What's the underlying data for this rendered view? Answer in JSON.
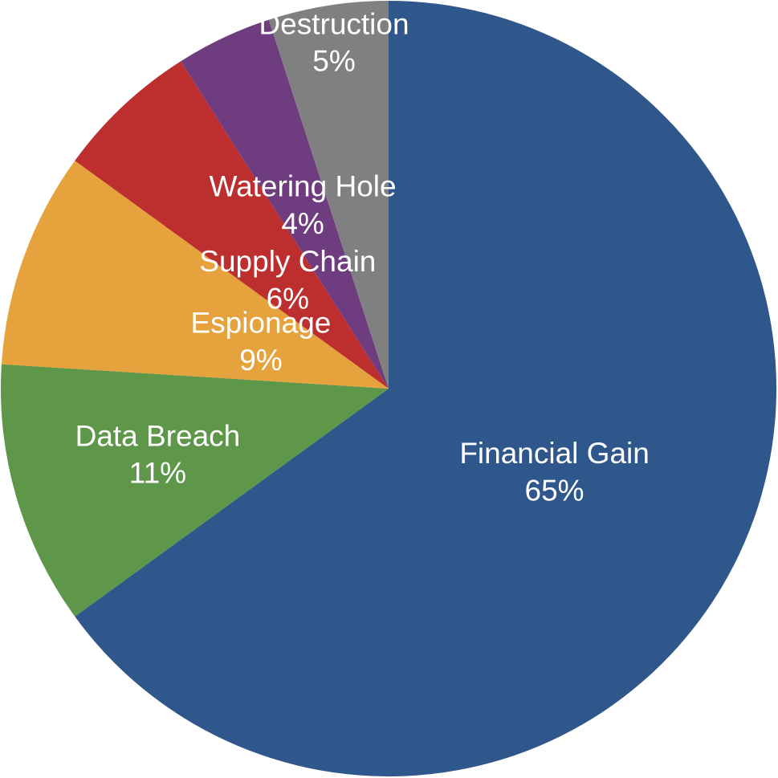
{
  "chart_data": {
    "type": "pie",
    "title": "",
    "start_angle": "12 o'clock",
    "direction": "clockwise",
    "slices": [
      {
        "label": "Financial Gain",
        "value": 65,
        "value_label": "65%",
        "color": "#2f578b"
      },
      {
        "label": "Data Breach",
        "value": 11,
        "value_label": "11%",
        "color": "#5e974a"
      },
      {
        "label": "Espionage",
        "value": 9,
        "value_label": "9%",
        "color": "#e6a23c"
      },
      {
        "label": "Supply Chain",
        "value": 6,
        "value_label": "6%",
        "color": "#bd2e2e"
      },
      {
        "label": "Watering Hole",
        "value": 4,
        "value_label": "4%",
        "color": "#6f3d7f"
      },
      {
        "label": "Destruction",
        "value": 5,
        "value_label": "5%",
        "color": "#7f807f"
      }
    ]
  }
}
